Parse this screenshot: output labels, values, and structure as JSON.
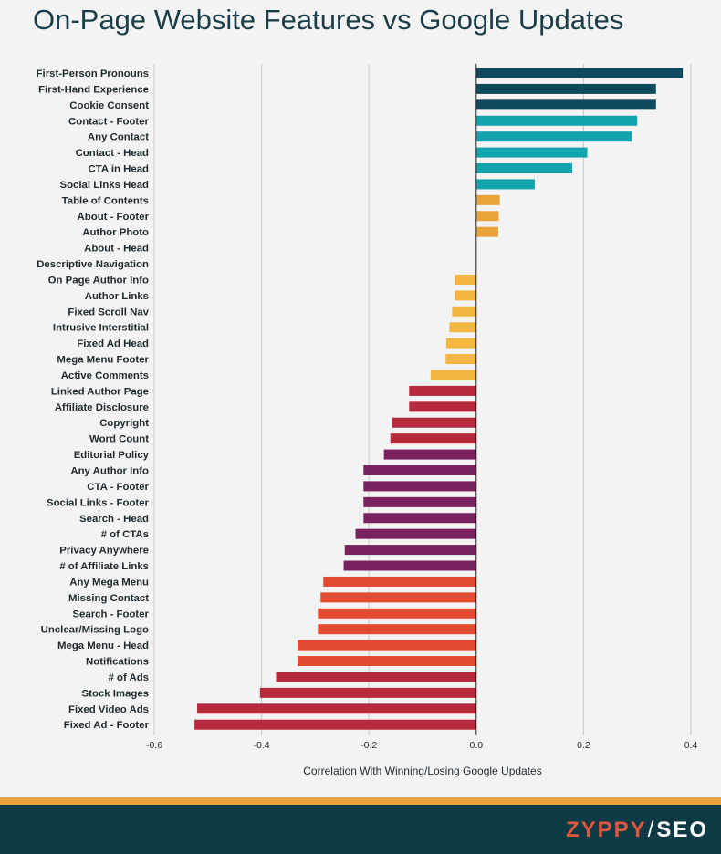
{
  "title": "On-Page Website Features vs Google Updates",
  "brand": {
    "name_part1": "ZYPPY",
    "separator": "/",
    "name_part2": "SEO"
  },
  "chart_data": {
    "type": "bar",
    "orientation": "horizontal",
    "xlabel": "Correlation With Winning/Losing Google Updates",
    "ylabel": "",
    "xlim": [
      -0.6,
      0.4
    ],
    "xticks": [
      -0.6,
      -0.4,
      -0.2,
      0.0,
      0.2,
      0.4
    ],
    "xtick_labels": [
      "-0.6",
      "-0.4",
      "-0.2",
      "0.0",
      "0.2",
      "0.4"
    ],
    "grid": "vertical",
    "categories": [
      "First-Person Pronouns",
      "First-Hand Experience",
      "Cookie Consent",
      "Contact - Footer",
      "Any Contact",
      "Contact - Head",
      "CTA in Head",
      "Social Links Head",
      "Table of Contents",
      "About - Footer",
      "Author Photo",
      "About - Head",
      "Descriptive Navigation",
      "On Page Author Info",
      "Author Links",
      "Fixed Scroll Nav",
      "Intrusive Interstitial",
      "Fixed Ad Head",
      "Mega Menu Footer",
      "Active Comments",
      "Linked Author Page",
      "Affiliate Disclosure",
      "Copyright",
      "Word Count",
      "Editorial Policy",
      "Any Author Info",
      "CTA - Footer",
      "Social Links - Footer",
      "Search - Head",
      "# of CTAs",
      "Privacy Anywhere",
      "# of Affiliate Links",
      "Any Mega Menu",
      "Missing Contact",
      "Search - Footer",
      "Unclear/Missing Logo",
      "Mega Menu - Head",
      "Notifications",
      "# of Ads",
      "Stock Images",
      "Fixed Video Ads",
      "Fixed Ad - Footer"
    ],
    "values": [
      0.385,
      0.335,
      0.335,
      0.3,
      0.29,
      0.207,
      0.179,
      0.109,
      0.044,
      0.042,
      0.041,
      0.0,
      0.0,
      -0.04,
      -0.04,
      -0.045,
      -0.05,
      -0.056,
      -0.057,
      -0.085,
      -0.125,
      -0.125,
      -0.157,
      -0.16,
      -0.172,
      -0.21,
      -0.21,
      -0.21,
      -0.21,
      -0.225,
      -0.245,
      -0.247,
      -0.285,
      -0.29,
      -0.295,
      -0.295,
      -0.333,
      -0.333,
      -0.373,
      -0.403,
      -0.52,
      -0.525
    ],
    "colors": [
      "#0e4a5c",
      "#0e4a5c",
      "#0e4a5c",
      "#13a3ad",
      "#13a3ad",
      "#13a3ad",
      "#13a3ad",
      "#13a3ad",
      "#e8a33b",
      "#e8a33b",
      "#e8a33b",
      "#e8a33b",
      "#e8a33b",
      "#f3b640",
      "#f3b640",
      "#f3b640",
      "#f3b640",
      "#f3b640",
      "#f3b640",
      "#f3b640",
      "#b52b3d",
      "#b52b3d",
      "#b52b3d",
      "#b52b3d",
      "#7a2160",
      "#7a2160",
      "#7a2160",
      "#7a2160",
      "#7a2160",
      "#7a2160",
      "#7a2160",
      "#7a2160",
      "#e24a32",
      "#e24a32",
      "#e24a32",
      "#e24a32",
      "#e24a32",
      "#e24a32",
      "#b52b3d",
      "#b52b3d",
      "#b52b3d",
      "#b52b3d"
    ]
  }
}
